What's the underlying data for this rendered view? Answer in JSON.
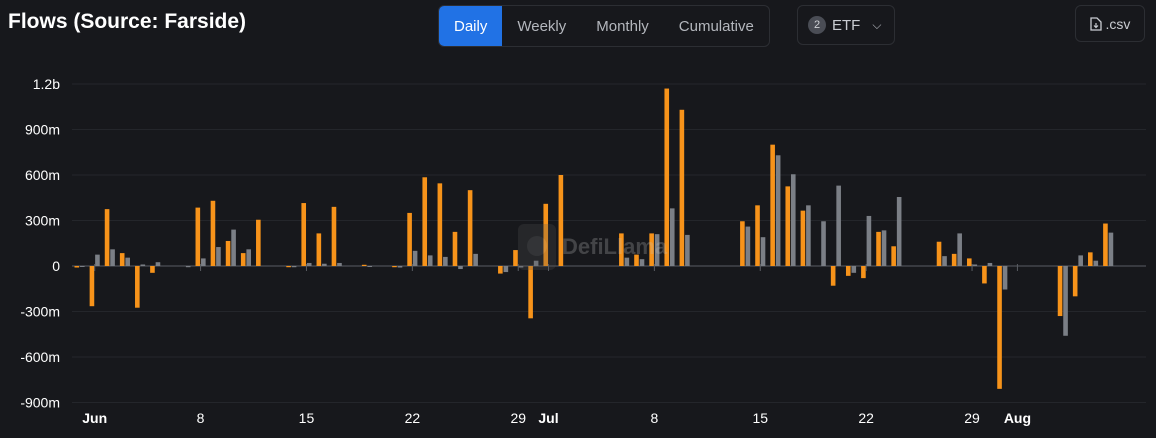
{
  "header": {
    "title": "Flows (Source: Farside)"
  },
  "period_tabs": [
    {
      "label": "Daily",
      "active": true
    },
    {
      "label": "Weekly",
      "active": false
    },
    {
      "label": "Monthly",
      "active": false
    },
    {
      "label": "Cumulative",
      "active": false
    }
  ],
  "filter": {
    "count": "2",
    "label": "ETF"
  },
  "download": {
    "label": ".csv"
  },
  "watermark": "DefiLlama",
  "colors": {
    "accent": "#2172e5",
    "series1": "#f7931a",
    "series2": "#7b7f86",
    "background": "#17181c"
  },
  "chart_data": {
    "type": "bar",
    "ylim": [
      -900,
      1300
    ],
    "y_ticks": [
      {
        "value": 1200,
        "label": "1.2b"
      },
      {
        "value": 900,
        "label": "900m"
      },
      {
        "value": 600,
        "label": "600m"
      },
      {
        "value": 300,
        "label": "300m"
      },
      {
        "value": 0,
        "label": "0"
      },
      {
        "value": -300,
        "label": "-300m"
      },
      {
        "value": -600,
        "label": "-600m"
      },
      {
        "value": -900,
        "label": "-900m"
      }
    ],
    "x_ticks": [
      {
        "date": "2024-06-01",
        "label": "Jun",
        "bold": true
      },
      {
        "date": "2024-06-08",
        "label": "8",
        "bold": false
      },
      {
        "date": "2024-06-15",
        "label": "15",
        "bold": false
      },
      {
        "date": "2024-06-22",
        "label": "22",
        "bold": false
      },
      {
        "date": "2024-06-29",
        "label": "29",
        "bold": false
      },
      {
        "date": "2024-07-01",
        "label": "Jul",
        "bold": true
      },
      {
        "date": "2024-07-08",
        "label": "8",
        "bold": false
      },
      {
        "date": "2024-07-15",
        "label": "15",
        "bold": false
      },
      {
        "date": "2024-07-22",
        "label": "22",
        "bold": false
      },
      {
        "date": "2024-07-29",
        "label": "29",
        "bold": false
      },
      {
        "date": "2024-08-01",
        "label": "Aug",
        "bold": true
      }
    ],
    "x_range": [
      "2024-05-31",
      "2024-08-09"
    ],
    "series": [
      {
        "color": "#f7931a",
        "points": [
          [
            "2024-05-31",
            -10
          ],
          [
            "2024-06-01",
            -265
          ],
          [
            "2024-06-02",
            375
          ],
          [
            "2024-06-03",
            85
          ],
          [
            "2024-06-04",
            -275
          ],
          [
            "2024-06-05",
            -45
          ],
          [
            "2024-06-08",
            385
          ],
          [
            "2024-06-09",
            430
          ],
          [
            "2024-06-10",
            165
          ],
          [
            "2024-06-11",
            85
          ],
          [
            "2024-06-12",
            305
          ],
          [
            "2024-06-14",
            -8
          ],
          [
            "2024-06-15",
            415
          ],
          [
            "2024-06-16",
            215
          ],
          [
            "2024-06-17",
            390
          ],
          [
            "2024-06-19",
            8
          ],
          [
            "2024-06-21",
            -8
          ],
          [
            "2024-06-22",
            350
          ],
          [
            "2024-06-23",
            585
          ],
          [
            "2024-06-24",
            545
          ],
          [
            "2024-06-25",
            225
          ],
          [
            "2024-06-26",
            500
          ],
          [
            "2024-06-28",
            -50
          ],
          [
            "2024-06-29",
            105
          ],
          [
            "2024-06-30",
            -345
          ],
          [
            "2024-07-01",
            410
          ],
          [
            "2024-07-02",
            600
          ],
          [
            "2024-07-06",
            215
          ],
          [
            "2024-07-07",
            75
          ],
          [
            "2024-07-08",
            215
          ],
          [
            "2024-07-09",
            1170
          ],
          [
            "2024-07-10",
            1030
          ],
          [
            "2024-07-14",
            295
          ],
          [
            "2024-07-15",
            400
          ],
          [
            "2024-07-16",
            800
          ],
          [
            "2024-07-17",
            525
          ],
          [
            "2024-07-18",
            365
          ],
          [
            "2024-07-20",
            -130
          ],
          [
            "2024-07-21",
            -65
          ],
          [
            "2024-07-22",
            -80
          ],
          [
            "2024-07-23",
            225
          ],
          [
            "2024-07-24",
            130
          ],
          [
            "2024-07-27",
            160
          ],
          [
            "2024-07-28",
            80
          ],
          [
            "2024-07-29",
            50
          ],
          [
            "2024-07-30",
            -115
          ],
          [
            "2024-07-31",
            -810
          ],
          [
            "2024-08-04",
            -330
          ],
          [
            "2024-08-05",
            -200
          ],
          [
            "2024-08-06",
            90
          ],
          [
            "2024-08-07",
            280
          ]
        ]
      },
      {
        "color": "#7b7f86",
        "points": [
          [
            "2024-05-31",
            0
          ],
          [
            "2024-06-01",
            75
          ],
          [
            "2024-06-02",
            110
          ],
          [
            "2024-06-03",
            55
          ],
          [
            "2024-06-04",
            10
          ],
          [
            "2024-06-05",
            25
          ],
          [
            "2024-06-07",
            -8
          ],
          [
            "2024-06-08",
            50
          ],
          [
            "2024-06-09",
            125
          ],
          [
            "2024-06-10",
            240
          ],
          [
            "2024-06-11",
            110
          ],
          [
            "2024-06-14",
            -8
          ],
          [
            "2024-06-15",
            20
          ],
          [
            "2024-06-16",
            15
          ],
          [
            "2024-06-17",
            20
          ],
          [
            "2024-06-19",
            -5
          ],
          [
            "2024-06-21",
            -10
          ],
          [
            "2024-06-22",
            100
          ],
          [
            "2024-06-23",
            70
          ],
          [
            "2024-06-24",
            60
          ],
          [
            "2024-06-25",
            -20
          ],
          [
            "2024-06-26",
            80
          ],
          [
            "2024-06-28",
            -40
          ],
          [
            "2024-06-29",
            -10
          ],
          [
            "2024-06-30",
            35
          ],
          [
            "2024-07-06",
            55
          ],
          [
            "2024-07-07",
            45
          ],
          [
            "2024-07-08",
            210
          ],
          [
            "2024-07-09",
            380
          ],
          [
            "2024-07-10",
            205
          ],
          [
            "2024-07-14",
            260
          ],
          [
            "2024-07-15",
            190
          ],
          [
            "2024-07-16",
            730
          ],
          [
            "2024-07-17",
            605
          ],
          [
            "2024-07-18",
            400
          ],
          [
            "2024-07-19",
            295
          ],
          [
            "2024-07-20",
            530
          ],
          [
            "2024-07-21",
            -45
          ],
          [
            "2024-07-22",
            330
          ],
          [
            "2024-07-23",
            235
          ],
          [
            "2024-07-24",
            455
          ],
          [
            "2024-07-27",
            65
          ],
          [
            "2024-07-28",
            215
          ],
          [
            "2024-07-29",
            10
          ],
          [
            "2024-07-30",
            20
          ],
          [
            "2024-07-31",
            -155
          ],
          [
            "2024-08-04",
            -460
          ],
          [
            "2024-08-05",
            70
          ],
          [
            "2024-08-06",
            35
          ],
          [
            "2024-08-07",
            220
          ]
        ]
      }
    ]
  }
}
